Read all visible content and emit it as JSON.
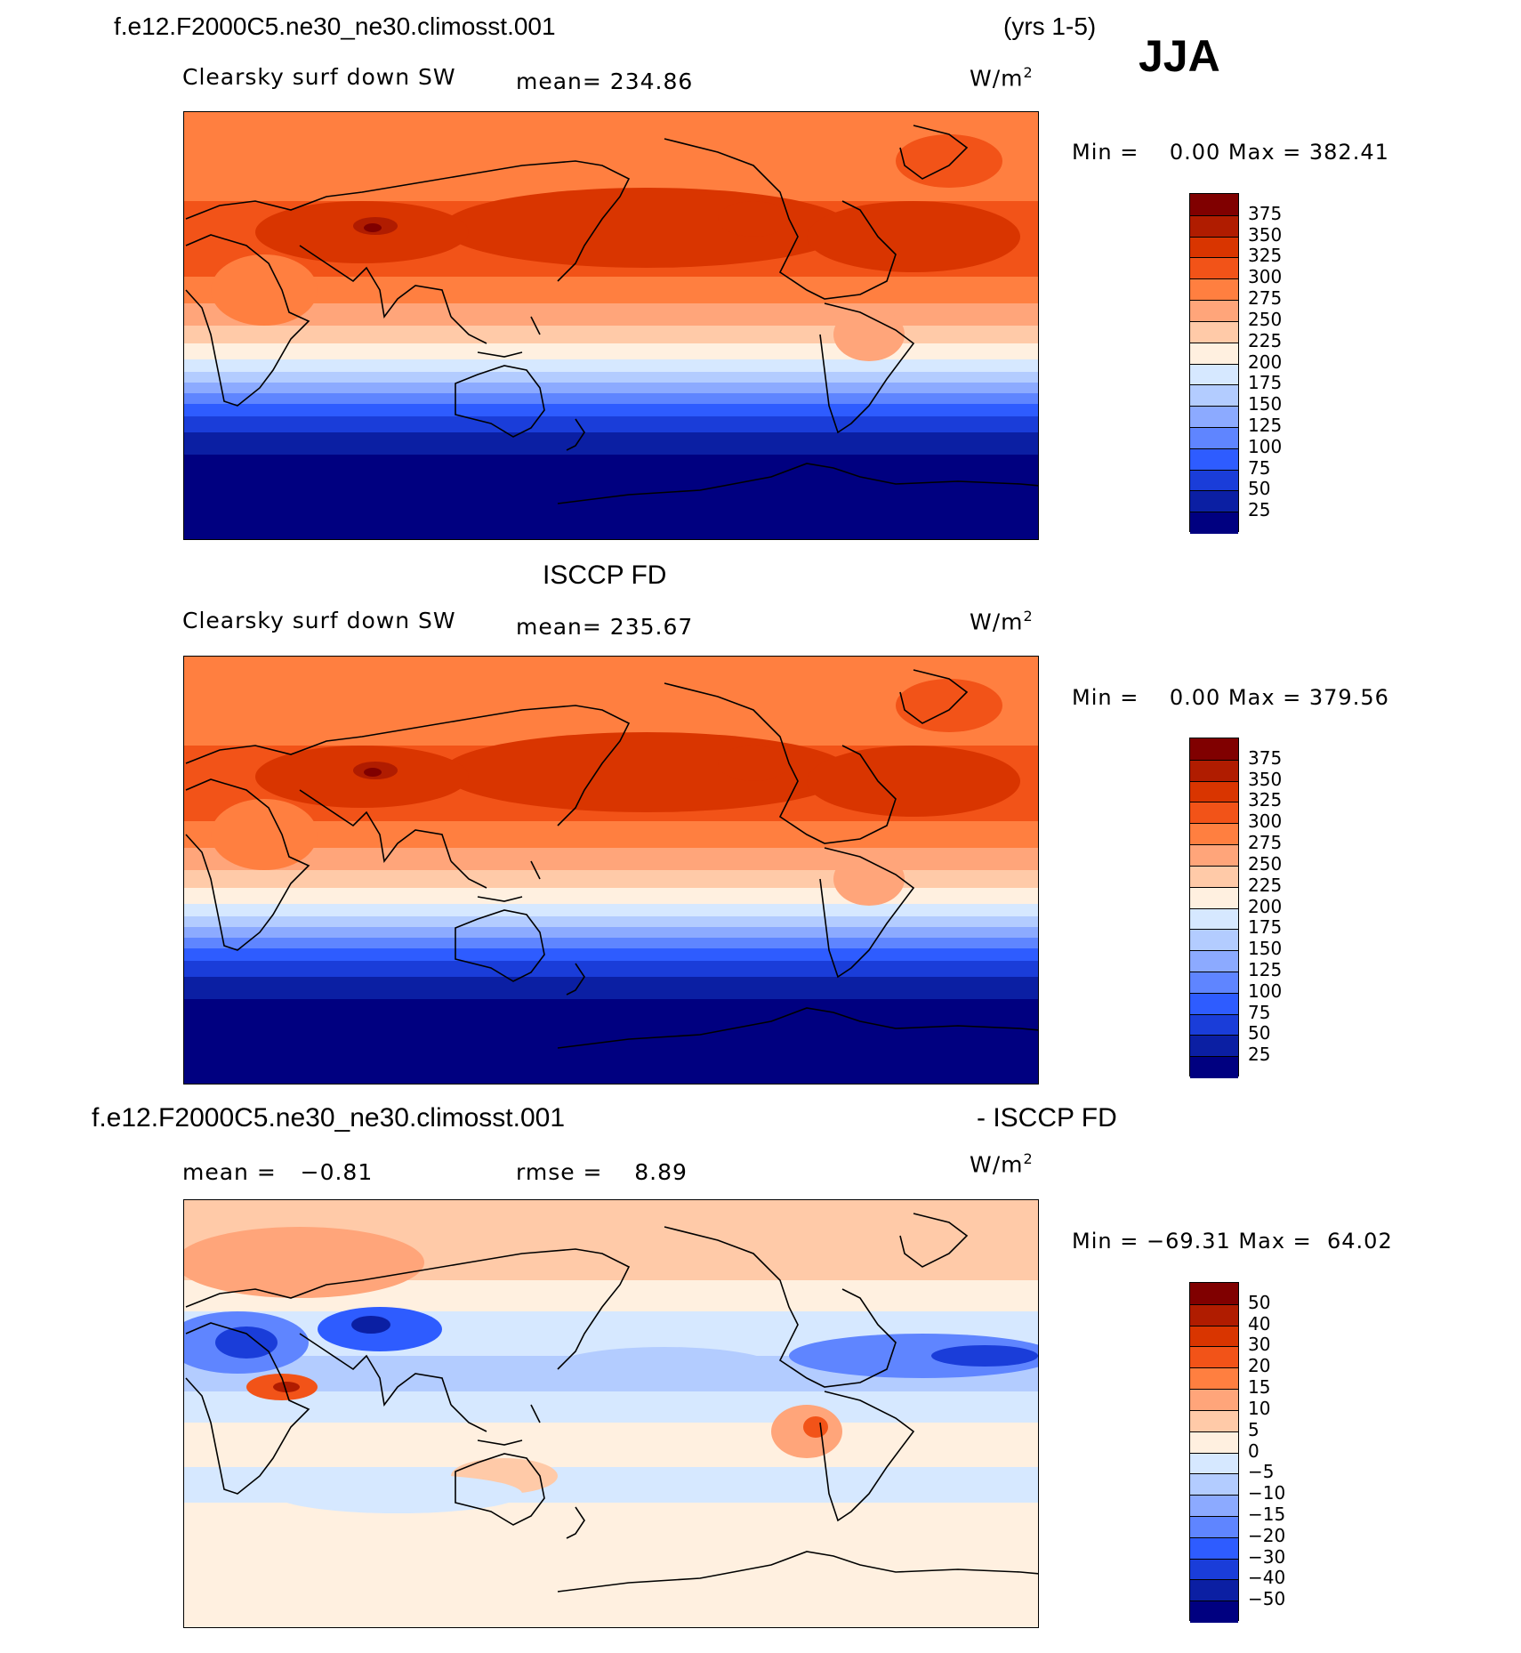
{
  "header": {
    "case_title": "f.e12.F2000C5.ne30_ne30.climosst.001",
    "years": "(yrs 1-5)",
    "season": "JJA"
  },
  "panels": [
    {
      "variable": "Clearsky surf down SW",
      "mean_text": "mean= 234.86",
      "units": "W/m",
      "units_sup": "2",
      "minmax_text": "Min =    0.00 Max = 382.41"
    },
    {
      "source_title": "ISCCP FD",
      "variable": "Clearsky surf down SW",
      "mean_text": "mean= 235.67",
      "units": "W/m",
      "units_sup": "2",
      "minmax_text": "Min =    0.00 Max = 379.56"
    },
    {
      "diff_title_left": "f.e12.F2000C5.ne30_ne30.climosst.001",
      "diff_title_right": "- ISCCP FD",
      "mean_text": "mean =   −0.81",
      "rmse_text": "rmse =    8.89",
      "units": "W/m",
      "units_sup": "2",
      "minmax_text": "Min = −69.31 Max =  64.02"
    }
  ],
  "chart_data": [
    {
      "type": "heatmap",
      "title": "Clearsky surf down SW",
      "subtitle": "f.e12.F2000C5.ne30_ne30.climosst.001 (yrs 1-5) JJA",
      "units": "W/m2",
      "mean": 234.86,
      "min": 0.0,
      "max": 382.41,
      "levels": [
        375,
        350,
        325,
        300,
        275,
        250,
        225,
        200,
        175,
        150,
        125,
        100,
        75,
        50,
        25
      ],
      "level_labels": [
        "375",
        "350",
        "325",
        "300",
        "275",
        "250",
        "225",
        "200",
        "175",
        "150",
        "125",
        "100",
        "75",
        "50",
        "25"
      ],
      "colors": [
        "#800000",
        "#b01c00",
        "#d93500",
        "#f25318",
        "#ff7f40",
        "#ffa57a",
        "#ffcaa8",
        "#fff0e0",
        "#d6e8ff",
        "#b3ccff",
        "#8caaff",
        "#5f85ff",
        "#2e5cff",
        "#1a3dd9",
        "#0b1fa3",
        "#000080"
      ]
    },
    {
      "type": "heatmap",
      "title": "Clearsky surf down SW",
      "subtitle": "ISCCP FD",
      "units": "W/m2",
      "mean": 235.67,
      "min": 0.0,
      "max": 379.56,
      "levels": [
        375,
        350,
        325,
        300,
        275,
        250,
        225,
        200,
        175,
        150,
        125,
        100,
        75,
        50,
        25
      ],
      "level_labels": [
        "375",
        "350",
        "325",
        "300",
        "275",
        "250",
        "225",
        "200",
        "175",
        "150",
        "125",
        "100",
        "75",
        "50",
        "25"
      ],
      "colors": [
        "#800000",
        "#b01c00",
        "#d93500",
        "#f25318",
        "#ff7f40",
        "#ffa57a",
        "#ffcaa8",
        "#fff0e0",
        "#d6e8ff",
        "#b3ccff",
        "#8caaff",
        "#5f85ff",
        "#2e5cff",
        "#1a3dd9",
        "#0b1fa3",
        "#000080"
      ]
    },
    {
      "type": "heatmap",
      "title": "f.e12.F2000C5.ne30_ne30.climosst.001 - ISCCP FD",
      "units": "W/m2",
      "mean": -0.81,
      "rmse": 8.89,
      "min": -69.31,
      "max": 64.02,
      "levels": [
        50,
        40,
        30,
        20,
        15,
        10,
        5,
        0,
        -5,
        -10,
        -15,
        -20,
        -30,
        -40,
        -50
      ],
      "level_labels": [
        "50",
        "40",
        "30",
        "20",
        "15",
        "10",
        "5",
        "0",
        "−5",
        "−10",
        "−15",
        "−20",
        "−30",
        "−40",
        "−50"
      ],
      "colors": [
        "#800000",
        "#b01c00",
        "#d93500",
        "#f25318",
        "#ff7f40",
        "#ffa57a",
        "#ffcaa8",
        "#fff0e0",
        "#d6e8ff",
        "#b3ccff",
        "#8caaff",
        "#5f85ff",
        "#2e5cff",
        "#1a3dd9",
        "#0b1fa3",
        "#000080"
      ]
    }
  ]
}
